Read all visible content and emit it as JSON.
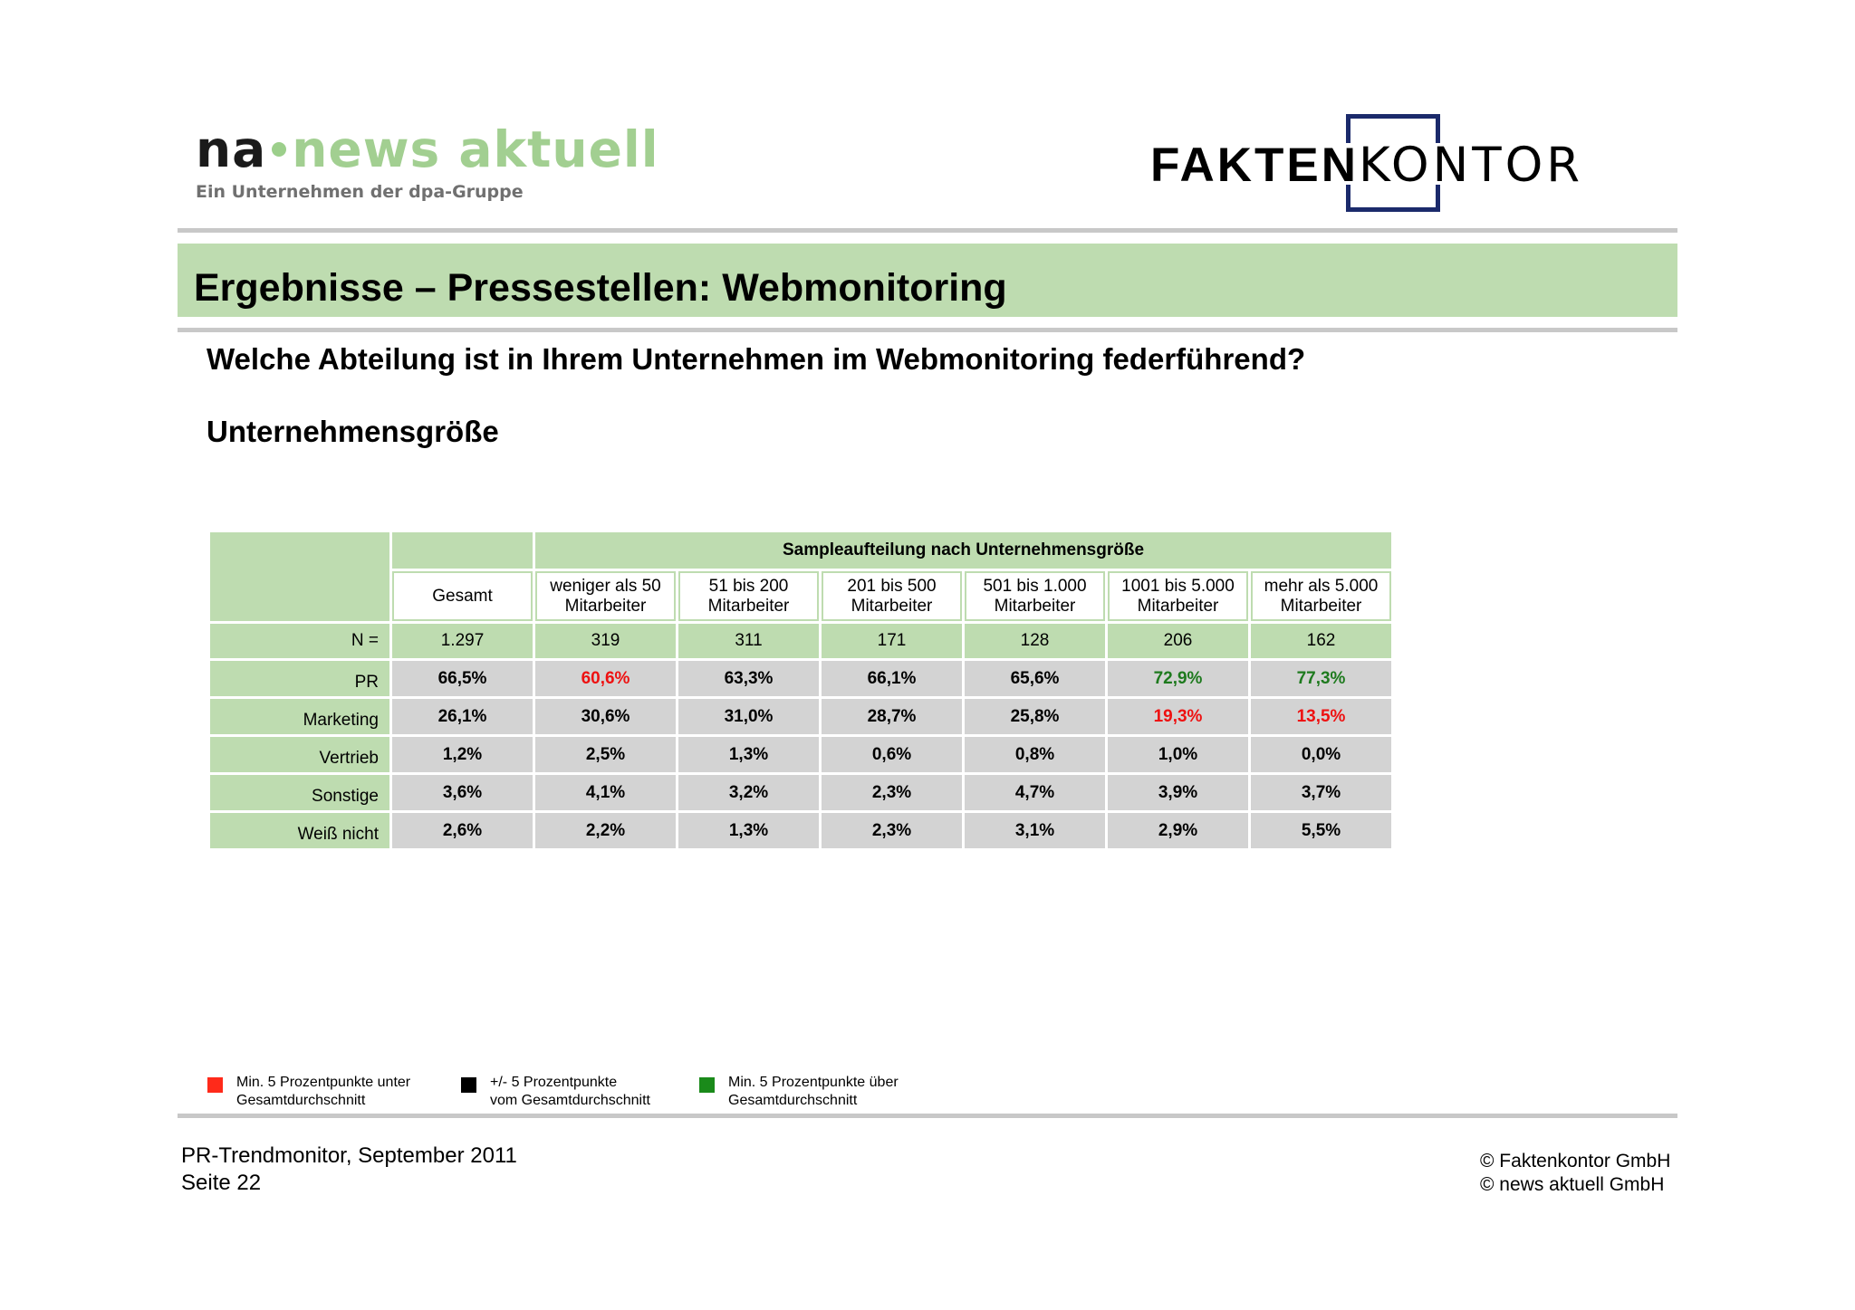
{
  "logos": {
    "news_aktuell": {
      "part1": "na",
      "part2": "news aktuell",
      "tagline": "Ein Unternehmen der dpa-Gruppe"
    },
    "faktenkontor": {
      "part1": "FAKTEN",
      "part2": "KONTOR"
    }
  },
  "title": "Ergebnisse – Pressestellen: Webmonitoring",
  "question": "Welche Abteilung ist in Ihrem Unternehmen im Webmonitoring federführend?",
  "subheading": "Unternehmensgröße",
  "table": {
    "group_header": "Sampleaufteilung nach Unternehmensgröße",
    "columns": [
      {
        "line1": "Gesamt",
        "line2": ""
      },
      {
        "line1": "weniger als 50",
        "line2": "Mitarbeiter"
      },
      {
        "line1": "51 bis 200",
        "line2": "Mitarbeiter"
      },
      {
        "line1": "201 bis 500",
        "line2": "Mitarbeiter"
      },
      {
        "line1": "501 bis 1.000",
        "line2": "Mitarbeiter"
      },
      {
        "line1": "1001 bis 5.000",
        "line2": "Mitarbeiter"
      },
      {
        "line1": "mehr als 5.000",
        "line2": "Mitarbeiter"
      }
    ],
    "n_row": {
      "label": "N =",
      "values": [
        "1.297",
        "319",
        "311",
        "171",
        "128",
        "206",
        "162"
      ]
    },
    "rows": [
      {
        "label": "PR",
        "values": [
          "66,5%",
          "60,6%",
          "63,3%",
          "66,1%",
          "65,6%",
          "72,9%",
          "77,3%"
        ],
        "status": [
          "neutral",
          "low",
          "neutral",
          "neutral",
          "neutral",
          "high",
          "high"
        ]
      },
      {
        "label": "Marketing",
        "values": [
          "26,1%",
          "30,6%",
          "31,0%",
          "28,7%",
          "25,8%",
          "19,3%",
          "13,5%"
        ],
        "status": [
          "neutral",
          "neutral",
          "neutral",
          "neutral",
          "neutral",
          "low",
          "low"
        ]
      },
      {
        "label": "Vertrieb",
        "values": [
          "1,2%",
          "2,5%",
          "1,3%",
          "0,6%",
          "0,8%",
          "1,0%",
          "0,0%"
        ],
        "status": [
          "neutral",
          "neutral",
          "neutral",
          "neutral",
          "neutral",
          "neutral",
          "neutral"
        ]
      },
      {
        "label": "Sonstige",
        "values": [
          "3,6%",
          "4,1%",
          "3,2%",
          "2,3%",
          "4,7%",
          "3,9%",
          "3,7%"
        ],
        "status": [
          "neutral",
          "neutral",
          "neutral",
          "neutral",
          "neutral",
          "neutral",
          "neutral"
        ]
      },
      {
        "label": "Weiß nicht",
        "values": [
          "2,6%",
          "2,2%",
          "1,3%",
          "2,3%",
          "3,1%",
          "2,9%",
          "5,5%"
        ],
        "status": [
          "neutral",
          "neutral",
          "neutral",
          "neutral",
          "neutral",
          "neutral",
          "neutral"
        ]
      }
    ]
  },
  "legend": [
    {
      "color": "#ff2a1a",
      "line1": "Min. 5 Prozentpunkte unter",
      "line2": "Gesamtdurchschnitt"
    },
    {
      "color": "#000000",
      "line1": "+/- 5 Prozentpunkte",
      "line2": "vom Gesamtdurchschnitt"
    },
    {
      "color": "#1a8a1a",
      "line1": "Min. 5 Prozentpunkte über",
      "line2": "Gesamtdurchschnitt"
    }
  ],
  "footer": {
    "source": "PR-Trendmonitor, September 2011",
    "page": "Seite 22",
    "copyright1": "© Faktenkontor GmbH",
    "copyright2": "© news aktuell GmbH"
  },
  "colors": {
    "accent_green": "#bedcb0",
    "cell_grey": "#d3d3d3",
    "low": "#ee1111",
    "high": "#1e7a1e",
    "brand_navy": "#1b2a6b"
  }
}
